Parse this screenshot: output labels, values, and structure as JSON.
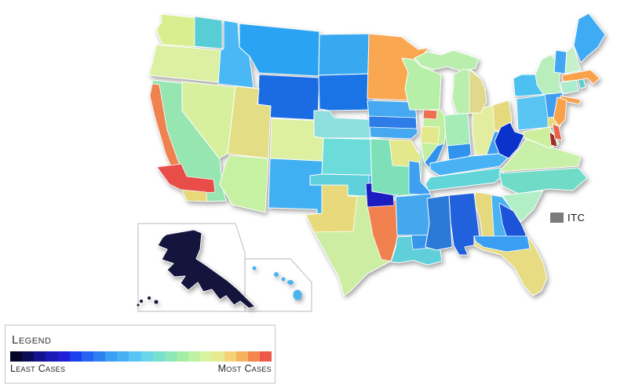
{
  "itc_legend": {
    "label": "ITC",
    "swatch_color": "#7b7b7b"
  },
  "legend": {
    "title": "Legend",
    "least_label": "Least Cases",
    "most_label": "Most Cases",
    "gradient_colors": [
      "#06062b",
      "#0c0c56",
      "#13138e",
      "#1a1ab6",
      "#1f1fd8",
      "#1c3fec",
      "#2563f2",
      "#2e80f0",
      "#3b9ff4",
      "#46b0f5",
      "#59c5f6",
      "#68d6e8",
      "#79e0d0",
      "#8ce8b8",
      "#a3eda6",
      "#bdf2a2",
      "#d7f3a0",
      "#e9ea90",
      "#f4d377",
      "#f8b25c",
      "#f5854f",
      "#ec5a47"
    ]
  },
  "map": {
    "regions": {
      "wa": {
        "name": "Washington",
        "color": "#d9ee8f"
      },
      "wa-east": {
        "name": "Washington east",
        "color": "#58cdd5"
      },
      "or": {
        "name": "Oregon",
        "color": "#dcf0a4"
      },
      "ca": {
        "name": "California",
        "color": "#97e6b2"
      },
      "ca-coast": {
        "name": "California coast",
        "color": "#f0824f"
      },
      "ca-south": {
        "name": "Southern California",
        "color": "#e84d49"
      },
      "ca-sd": {
        "name": "San Diego area",
        "color": "#e8d878"
      },
      "nv": {
        "name": "Nevada",
        "color": "#d6f09e"
      },
      "id": {
        "name": "Idaho",
        "color": "#49b8f5"
      },
      "mt": {
        "name": "Montana",
        "color": "#2aa4f2"
      },
      "wy": {
        "name": "Wyoming",
        "color": "#1b6ce2"
      },
      "ut": {
        "name": "Utah",
        "color": "#e3de86"
      },
      "co": {
        "name": "Colorado",
        "color": "#ddf0a0"
      },
      "az": {
        "name": "Arizona",
        "color": "#c6f0a2"
      },
      "nm": {
        "name": "New Mexico",
        "color": "#41b0f2"
      },
      "nd": {
        "name": "North Dakota",
        "color": "#38a9f0"
      },
      "sd": {
        "name": "South Dakota",
        "color": "#1b74e6"
      },
      "ne": {
        "name": "Nebraska",
        "color": "#8fdede"
      },
      "ks": {
        "name": "Kansas",
        "color": "#6cdcda"
      },
      "ok": {
        "name": "Oklahoma",
        "color": "#5fd0dc"
      },
      "ok-east": {
        "name": "Oklahoma east",
        "color": "#49b4f0"
      },
      "tx": {
        "name": "Texas",
        "color": "#cdeea2"
      },
      "tx-west": {
        "name": "Texas west",
        "color": "#e8da7c"
      },
      "tx-ne": {
        "name": "Texas northeast",
        "color": "#1c1cc0"
      },
      "tx-east": {
        "name": "Texas east",
        "color": "#f0804e"
      },
      "mn": {
        "name": "Minnesota",
        "color": "#f9a750"
      },
      "ia": {
        "name": "Iowa",
        "color": "#45a8f0"
      },
      "ia-band": {
        "name": "Iowa central",
        "color": "#2d7ce8"
      },
      "mo": {
        "name": "Missouri",
        "color": "#7de0b8"
      },
      "mo-ne": {
        "name": "Missouri northeast",
        "color": "#e4e88c"
      },
      "mo-e": {
        "name": "Missouri east",
        "color": "#3f9ff0"
      },
      "ar": {
        "name": "Arkansas",
        "color": "#45a8ee"
      },
      "la": {
        "name": "Louisiana",
        "color": "#5fcfda"
      },
      "la-n": {
        "name": "Louisiana north",
        "color": "#3795ea"
      },
      "wi": {
        "name": "Wisconsin",
        "color": "#b7efa8"
      },
      "il": {
        "name": "Illinois",
        "color": "#c2eea0"
      },
      "il-nw": {
        "name": "Illinois northwest",
        "color": "#ee6f52"
      },
      "il-c": {
        "name": "Illinois central",
        "color": "#e4e88c"
      },
      "il-s": {
        "name": "Illinois south",
        "color": "#3093ee"
      },
      "in": {
        "name": "Indiana",
        "color": "#a5ecb8"
      },
      "in-s": {
        "name": "Indiana south",
        "color": "#3093ee"
      },
      "oh": {
        "name": "Ohio",
        "color": "#e3eda0"
      },
      "oh-ne": {
        "name": "Ohio northeast",
        "color": "#e6d87c"
      },
      "oh-se": {
        "name": "Ohio southeast",
        "color": "#3f9ff0"
      },
      "mi-up": {
        "name": "Michigan upper peninsula",
        "color": "#b9eead"
      },
      "mi": {
        "name": "Michigan",
        "color": "#b9eead"
      },
      "mi-e": {
        "name": "Michigan east",
        "color": "#e0d88a"
      },
      "ky": {
        "name": "Kentucky",
        "color": "#49b2f5"
      },
      "tn": {
        "name": "Tennessee",
        "color": "#62d5d8"
      },
      "wv": {
        "name": "West Virginia",
        "color": "#0a33cc"
      },
      "va": {
        "name": "Virginia",
        "color": "#c9f0a8"
      },
      "nc": {
        "name": "North Carolina",
        "color": "#70dcc8"
      },
      "sc": {
        "name": "South Carolina",
        "color": "#b2eec6"
      },
      "ga": {
        "name": "Georgia",
        "color": "#49b2f0"
      },
      "ga-w": {
        "name": "Georgia west",
        "color": "#e6d87c"
      },
      "ga-c": {
        "name": "Georgia central",
        "color": "#1b54d8"
      },
      "al": {
        "name": "Alabama",
        "color": "#2161dd"
      },
      "ms": {
        "name": "Mississippi",
        "color": "#2b7ad8"
      },
      "fl": {
        "name": "Florida",
        "color": "#e8dc82"
      },
      "fl-ph": {
        "name": "Florida panhandle",
        "color": "#3a9ff2"
      },
      "md": {
        "name": "Maryland",
        "color": "#cdee9c"
      },
      "md-sh": {
        "name": "Maryland eastern shore",
        "color": "#9e2f28"
      },
      "de": {
        "name": "Delaware",
        "color": "#e8614e"
      },
      "nj": {
        "name": "New Jersey",
        "color": "#f9a24b"
      },
      "pa": {
        "name": "Pennsylvania",
        "color": "#5ac5f3"
      },
      "pa-e": {
        "name": "Pennsylvania east",
        "color": "#3f9ef0"
      },
      "pa-se": {
        "name": "Pennsylvania southeast",
        "color": "#e6d87c"
      },
      "ny": {
        "name": "New York",
        "color": "#4cc0f0"
      },
      "ny-e": {
        "name": "New York east",
        "color": "#b9eebc"
      },
      "li": {
        "name": "Long Island",
        "color": "#f9a24b"
      },
      "ct": {
        "name": "Connecticut",
        "color": "#aaeccc"
      },
      "ri": {
        "name": "Rhode Island",
        "color": "#5fd0c8"
      },
      "ma": {
        "name": "Massachusetts",
        "color": "#f9a24b"
      },
      "vt": {
        "name": "Vermont",
        "color": "#42a6f2"
      },
      "nh": {
        "name": "New Hampshire",
        "color": "#c6f0ca"
      },
      "me": {
        "name": "Maine",
        "color": "#3fabf5"
      },
      "ak": {
        "name": "Alaska",
        "color": "#14143c"
      },
      "hi": {
        "name": "Hawaii",
        "color": "#49b4f0"
      }
    }
  }
}
